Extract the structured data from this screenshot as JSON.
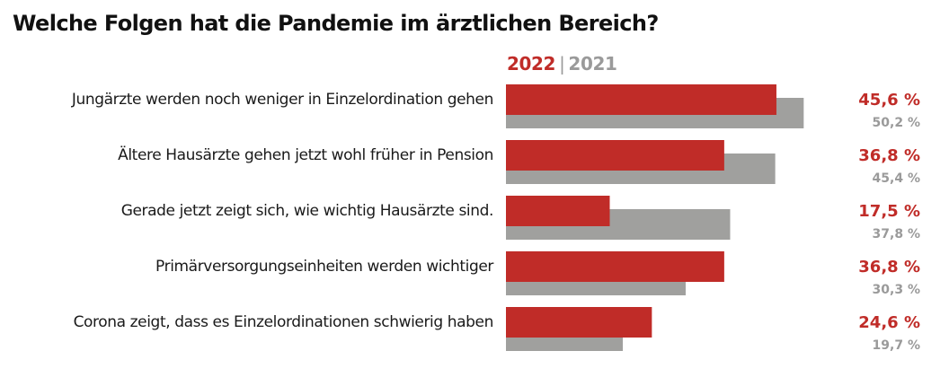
{
  "title": "Welche Folgen hat die Pandemie im ärztlichen Bereich?",
  "legend": {
    "primary": "2022",
    "separator": "|",
    "secondary": "2021"
  },
  "colors": {
    "series_2022": "#c02c28",
    "series_2021": "#a0a09e",
    "text": "#1a1a1a"
  },
  "chart_data": {
    "type": "bar",
    "orientation": "horizontal",
    "title": "Welche Folgen hat die Pandemie im ärztlichen Bereich?",
    "xlabel": "",
    "ylabel": "",
    "xlim": [
      0,
      60
    ],
    "grid": false,
    "legend_placement": "top",
    "categories": [
      "Jungärzte werden noch weniger in Einzelordination gehen",
      "Ältere Hausärzte gehen jetzt wohl früher in Pension",
      "Gerade jetzt zeigt sich, wie wichtig Hausärzte sind.",
      "Primärversorgungseinheiten werden wichtiger",
      "Corona zeigt, dass es Einzelordinationen schwierig haben"
    ],
    "series": [
      {
        "name": "2022",
        "values": [
          45.6,
          36.8,
          17.5,
          36.8,
          24.6
        ],
        "labels": [
          "45,6 %",
          "36,8 %",
          "17,5 %",
          "36,8 %",
          "24,6 %"
        ]
      },
      {
        "name": "2021",
        "values": [
          50.2,
          45.4,
          37.8,
          30.3,
          19.7
        ],
        "labels": [
          "50,2 %",
          "45,4 %",
          "37,8 %",
          "30,3 %",
          "19,7 %"
        ]
      }
    ]
  }
}
